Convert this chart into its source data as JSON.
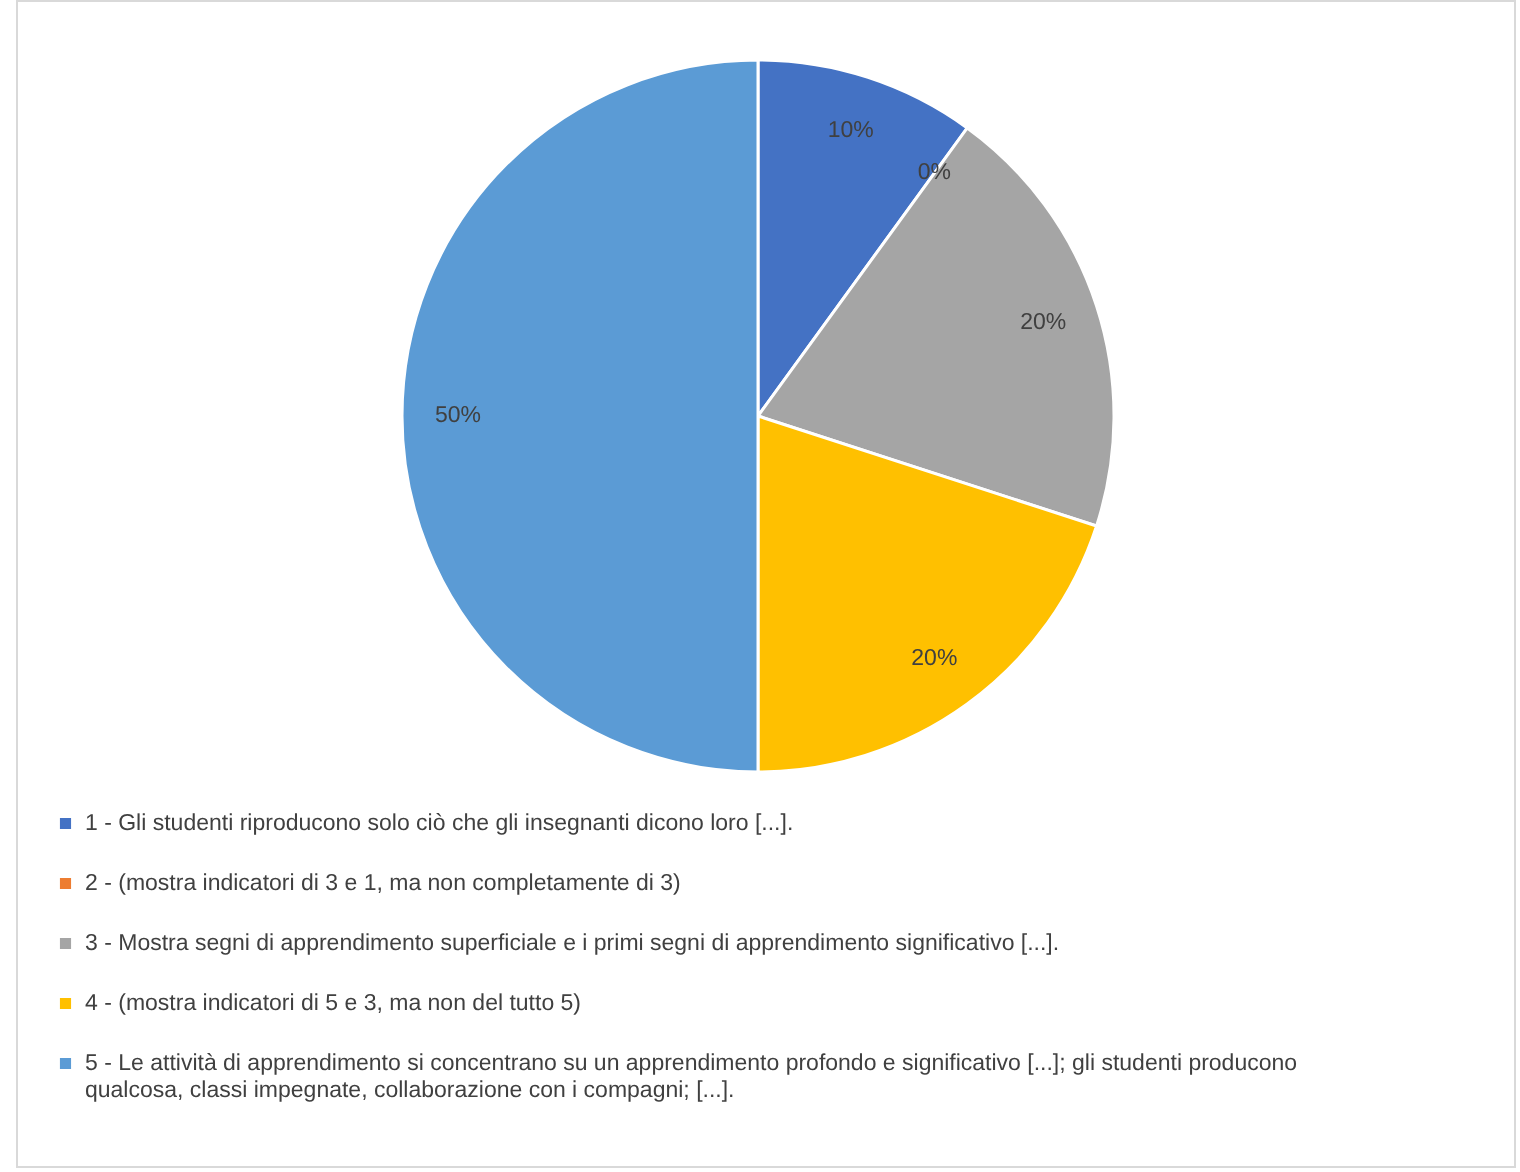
{
  "chart_data": {
    "type": "pie",
    "categories": [
      "1 - Gli studenti riproducono solo ciò che gli insegnanti dicono loro [...].",
      "2 - (mostra indicatori di 3 e 1, ma non completamente di 3)",
      "3 - Mostra segni di apprendimento superficiale e i primi segni di apprendimento significativo [...].",
      "4 - (mostra indicatori di 5 e 3, ma non del tutto 5)",
      "5 - Le attività di apprendimento si concentrano su un apprendimento profondo e significativo [...]; gli studenti producono qualcosa, classi impegnate, collaborazione con i compagni; [...]."
    ],
    "values": [
      10,
      0,
      20,
      20,
      50
    ],
    "value_labels": [
      "10%",
      "0%",
      "20%",
      "20%",
      "50%"
    ],
    "colors": [
      "#4472c4",
      "#ed7d31",
      "#a5a5a5",
      "#ffc000",
      "#5b9bd5"
    ],
    "legend": "bottom"
  }
}
